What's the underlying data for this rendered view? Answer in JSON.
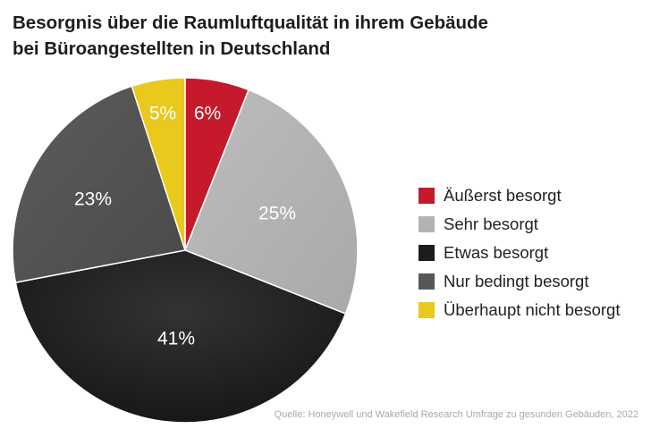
{
  "title": {
    "line1": "Besorgnis über die Raumluftqualität in ihrem Gebäude",
    "line2": "bei Büroangestellten in Deutschland"
  },
  "source": "Quelle: Honeywell und Wakefield Research Umfrage zu gesunden Gebäuden, 2022",
  "chart_data": {
    "type": "pie",
    "title": "Besorgnis über die Raumluftqualität in ihrem Gebäude bei Büroangestellten in Deutschland",
    "legend_position": "right",
    "slices": [
      {
        "label": "Äußerst besorgt",
        "value": 6,
        "display": "6%",
        "color": "#c41a2c",
        "text_color": "#ffffff"
      },
      {
        "label": "Sehr besorgt",
        "value": 25,
        "display": "25%",
        "color": "#b3b3b3",
        "text_color": "#ffffff"
      },
      {
        "label": "Etwas besorgt",
        "value": 41,
        "display": "41%",
        "color": "#1c1c1c",
        "text_color": "#ffffff"
      },
      {
        "label": "Nur bedingt besorgt",
        "value": 23,
        "display": "23%",
        "color": "#575757",
        "text_color": "#ffffff"
      },
      {
        "label": "Überhaupt nicht besorgt",
        "value": 5,
        "display": "5%",
        "color": "#e8c91c",
        "text_color": "#ffffff"
      }
    ]
  }
}
